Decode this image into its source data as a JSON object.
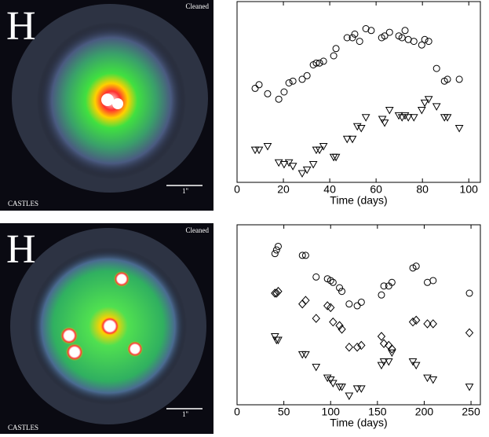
{
  "images": [
    {
      "letter": "H",
      "corner_label": "Cleaned",
      "credit": "CASTLES",
      "scale_label": "1''"
    },
    {
      "letter": "H",
      "corner_label": "Cleaned",
      "credit": "CASTLES",
      "scale_label": "1''"
    }
  ],
  "chart_data": [
    {
      "type": "scatter",
      "xlabel": "Time (days)",
      "xlim": [
        0,
        105
      ],
      "xticks": [
        0,
        20,
        40,
        60,
        80,
        100
      ],
      "ylim": [
        0,
        100
      ],
      "series": [
        {
          "marker": "circle",
          "color": "#000",
          "x": [
            7.8,
            9.5,
            13.2,
            18,
            20.3,
            22.4,
            24.1,
            28.1,
            30.2,
            32.9,
            34.2,
            35.6,
            37.3,
            41.7,
            42.7,
            47.5,
            49.8,
            50.8,
            52.9,
            55.6,
            57.9,
            62.4,
            63.7,
            65.8,
            69.8,
            71.2,
            72.5,
            73.9,
            76.3,
            79.7,
            81,
            82.7,
            86.1,
            89.5,
            90.8,
            95.9
          ],
          "values": [
            52,
            54,
            49,
            46,
            50,
            55,
            56,
            57,
            59,
            65,
            66,
            66,
            67,
            70,
            74,
            80,
            80,
            82,
            78,
            85,
            84,
            80,
            81,
            83,
            81,
            80,
            84,
            79,
            78,
            76,
            79,
            78,
            63,
            56,
            57,
            57
          ]
        },
        {
          "marker": "triangle",
          "color": "#000",
          "x": [
            7.8,
            9.5,
            13.2,
            18,
            20.3,
            22.4,
            24.1,
            28.1,
            30.2,
            32.9,
            34.2,
            35.6,
            37.3,
            41.7,
            42.7,
            47.5,
            49.8,
            51.9,
            53.6,
            55.6,
            62.7,
            63.7,
            65.8,
            69.8,
            71.2,
            72.5,
            73.9,
            76.3,
            79.7,
            81,
            82.7,
            86.1,
            89.5,
            90.8,
            95.9
          ],
          "values": [
            18,
            18,
            20,
            11,
            10,
            11,
            9,
            5,
            7,
            10,
            18,
            18,
            20,
            14,
            14,
            24,
            24,
            31,
            30,
            36,
            35,
            33,
            40,
            37,
            36,
            37,
            36,
            36,
            40,
            44,
            46,
            42,
            36,
            36,
            30
          ]
        }
      ]
    },
    {
      "type": "scatter",
      "xlabel": "Time (days)",
      "xlim": [
        0,
        260
      ],
      "xticks": [
        0,
        50,
        100,
        150,
        200,
        250
      ],
      "ylim": [
        0,
        100
      ],
      "series": [
        {
          "marker": "circle",
          "color": "#000",
          "x": [
            40.5,
            42.2,
            44,
            69.8,
            73.3,
            84.5,
            96.6,
            100,
            102.6,
            109.5,
            112,
            119.8,
            128.4,
            132.8,
            154.3,
            156.9,
            162.1,
            165.5,
            187.9,
            191.4,
            203.4,
            209.5,
            248.3
          ],
          "values": [
            84,
            86,
            88,
            83,
            83,
            71,
            70,
            69,
            68,
            65,
            63,
            56,
            55,
            57,
            61,
            66,
            66,
            68,
            76,
            77,
            68,
            69,
            62
          ]
        },
        {
          "marker": "diamond",
          "color": "#000",
          "x": [
            40.5,
            42.2,
            44,
            69.8,
            73.3,
            84.5,
            96.6,
            100,
            102.6,
            109.5,
            112,
            119.8,
            128.4,
            132.8,
            154.3,
            156.9,
            162.1,
            165.5,
            187.9,
            191.4,
            203.4,
            209.5,
            248.3
          ],
          "values": [
            62,
            62,
            63,
            56,
            58,
            48,
            55,
            54,
            46,
            44,
            42,
            32,
            32,
            33,
            38,
            34,
            33,
            31,
            46,
            47,
            45,
            45,
            40
          ]
        },
        {
          "marker": "triangle",
          "color": "#000",
          "x": [
            40.5,
            42.2,
            44,
            69.8,
            73.3,
            84.5,
            96.6,
            100,
            102.6,
            109.5,
            112,
            119.8,
            128.4,
            132.8,
            154.3,
            156.9,
            162.1,
            165.5,
            187.9,
            191.4,
            203.4,
            209.5,
            248.3
          ],
          "values": [
            38,
            36,
            36,
            28,
            28,
            21,
            15,
            14,
            12,
            10,
            10,
            5,
            9,
            9,
            22,
            24,
            24,
            29,
            24,
            22,
            15,
            14,
            10
          ]
        }
      ]
    }
  ]
}
